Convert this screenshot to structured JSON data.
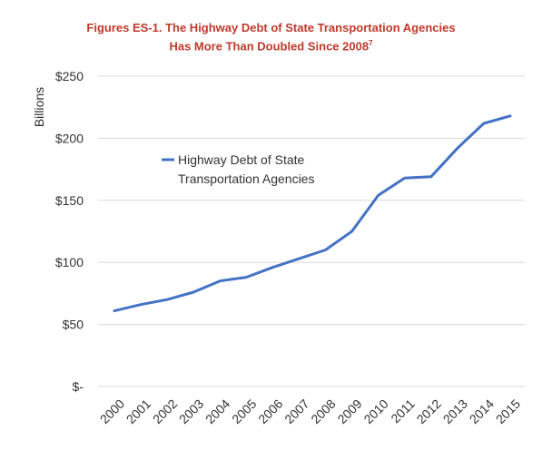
{
  "chart_data": {
    "type": "line",
    "title_line1": "Figures ES-1. The Highway Debt of State Transportation Agencies",
    "title_line2": "Has More Than Doubled Since 2008",
    "title_note": "7",
    "ylabel": "Billions",
    "xlabel": "",
    "categories": [
      "2000",
      "2001",
      "2002",
      "2003",
      "2004",
      "2005",
      "2006",
      "2007",
      "2008",
      "2009",
      "2010",
      "2011",
      "2012",
      "2013",
      "2014",
      "2015"
    ],
    "series": [
      {
        "name_line1": "Highway Debt of State",
        "name_line2": "Transportation Agencies",
        "values": [
          61,
          66,
          70,
          76,
          85,
          88,
          96,
          103,
          110,
          125,
          154,
          168,
          169,
          192,
          212,
          218
        ],
        "color": "#4472c4"
      }
    ],
    "ylim": [
      0,
      250
    ],
    "yticks": [
      0,
      50,
      100,
      150,
      200,
      250
    ],
    "ytick_labels": [
      "$-",
      "$50",
      "$100",
      "$150",
      "$200",
      "$250"
    ],
    "grid": true,
    "legend_placement": "upper-left inside plot"
  }
}
